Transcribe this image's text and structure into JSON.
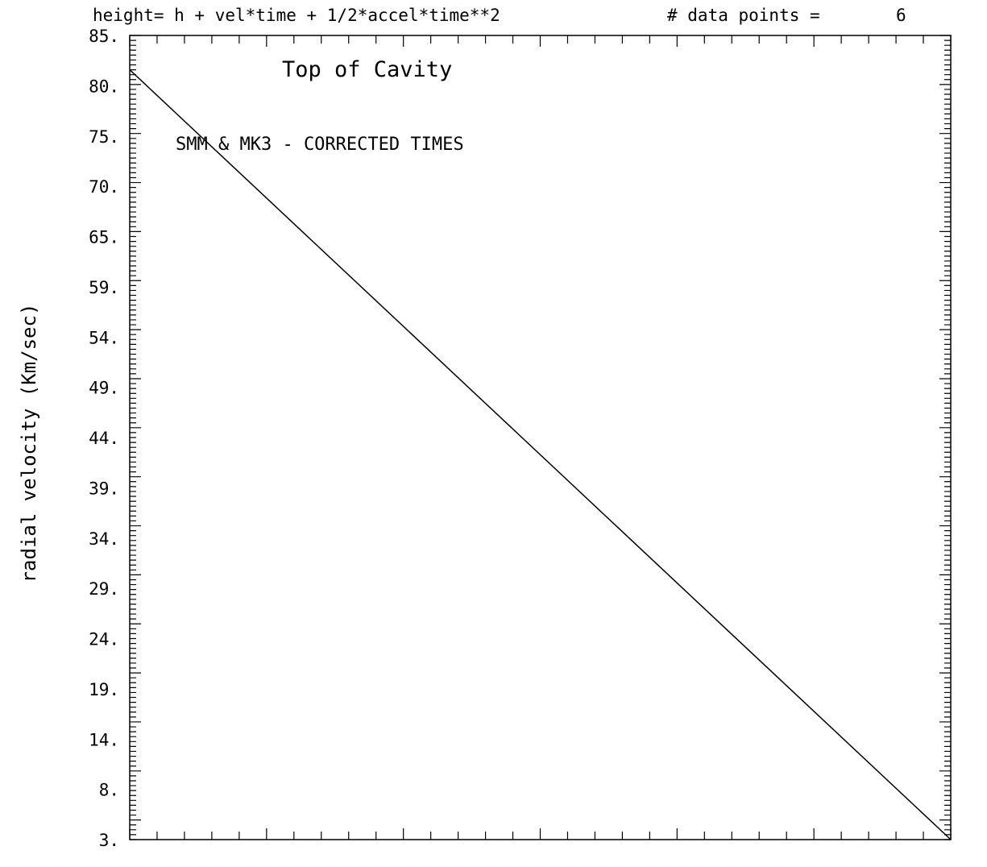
{
  "header": {
    "equation": "height= h + vel*time + 1/2*accel*time**2",
    "data_points_label": "# data points =",
    "data_points_value": "6"
  },
  "annotations": {
    "title": "Top of Cavity",
    "subtitle": "SMM & MK3 - CORRECTED TIMES"
  },
  "chart_data": {
    "type": "line",
    "title": "Top of Cavity",
    "xlabel": "",
    "ylabel": "radial velocity (Km/sec)",
    "ylim": [
      3,
      85
    ],
    "xlim": [
      0,
      1
    ],
    "y_ticks": [
      "85.",
      "80.",
      "75.",
      "70.",
      "65.",
      "59.",
      "54.",
      "49.",
      "44.",
      "39.",
      "34.",
      "29.",
      "24.",
      "19.",
      "14.",
      "8.",
      "3."
    ],
    "x_ticks_shown": false,
    "grid": false,
    "series": [
      {
        "x": [
          0,
          1
        ],
        "y": [
          81.5,
          3
        ]
      }
    ]
  }
}
